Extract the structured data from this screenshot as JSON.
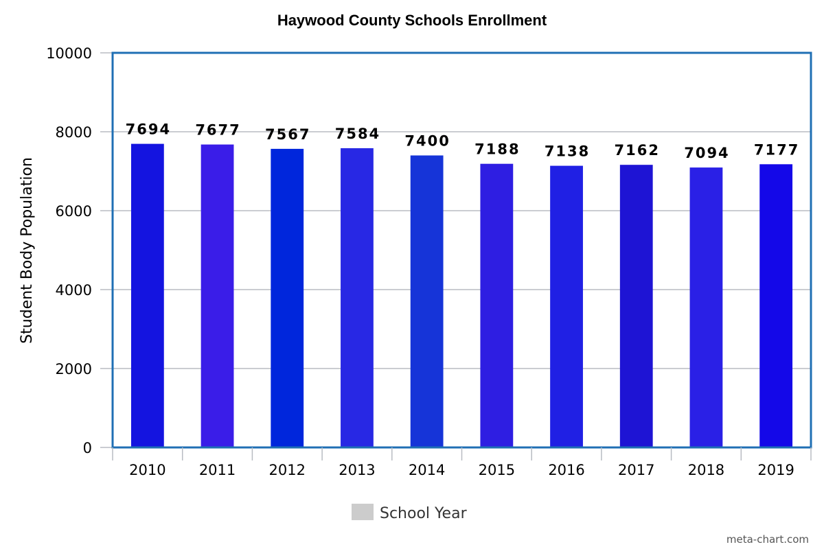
{
  "chart_data": {
    "type": "bar",
    "title": "Haywood County Schools Enrollment",
    "xlabel": "",
    "ylabel": "Student Body Population",
    "categories": [
      "2010",
      "2011",
      "2012",
      "2013",
      "2014",
      "2015",
      "2016",
      "2017",
      "2018",
      "2019"
    ],
    "values": [
      7694,
      7677,
      7567,
      7584,
      7400,
      7188,
      7138,
      7162,
      7094,
      7177
    ],
    "data_labels": [
      "7694",
      "7677",
      "7567",
      "7584",
      "7400",
      "7188",
      "7138",
      "7162",
      "7094",
      "7177"
    ],
    "bar_colors": [
      "#1414e0",
      "#3a1de8",
      "#0026dc",
      "#2828e4",
      "#1634d8",
      "#2e1ee2",
      "#2020e4",
      "#1e14d4",
      "#2a20e6",
      "#1408e8"
    ],
    "ylim": [
      0,
      10000
    ],
    "yticks": [
      0,
      2000,
      4000,
      6000,
      8000,
      10000
    ],
    "ytick_labels": [
      "0",
      "2000",
      "4000",
      "6000",
      "8000",
      "10000"
    ],
    "grid": true,
    "legend": {
      "placement": "bottom-center",
      "label": "School Year",
      "swatch_color": "#cccccc"
    },
    "watermark": "meta-chart.com",
    "colors": {
      "plot_border": "#1f6fb4",
      "gridline": "#b8bcc2",
      "axis_tick": "#b8bcc2"
    }
  }
}
